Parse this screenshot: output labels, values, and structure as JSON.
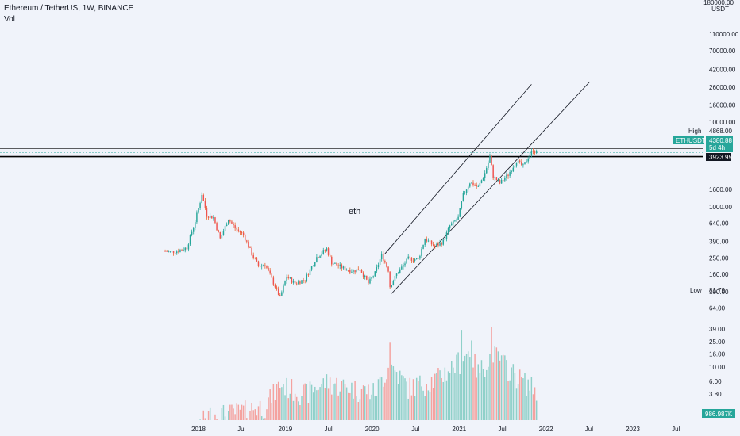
{
  "legend": {
    "symbol_line": "Ethereum / TetherUS, 1W, BINANCE",
    "volume_label": "Vol"
  },
  "colors": {
    "up": "#26a69a",
    "down": "#ef5350",
    "wick_up": "#26a69a",
    "wick_down": "#e8662c",
    "volume_up": "#8fd0c9",
    "volume_down": "#f4a29f",
    "resistance": "#000000",
    "price_tag": "#26a69a",
    "level_tag": "#131722"
  },
  "chart_data": [
    {
      "type": "candlestick",
      "title": "Ethereum / TetherUS, 1W, BINANCE",
      "price_axis_labels": [
        "110000.00",
        "70000.00",
        "42000.00",
        "26000.00",
        "16000.00",
        "10000.00",
        "6400.00",
        "1600.00",
        "1000.00",
        "640.00",
        "390.00",
        "250.00",
        "160.00",
        "100.00",
        "64.00"
      ],
      "price_scale": "log",
      "ylim": [
        50,
        180000
      ],
      "x_axis_labels": [
        "2018",
        "Jul",
        "2019",
        "Jul",
        "2020",
        "Jul",
        "2021",
        "Jul",
        "2022",
        "Jul",
        "2023",
        "Jul"
      ],
      "series_name": "ETHUSDT",
      "last_price": "4380.88",
      "countdown": "5d 4h",
      "horizontal_level": "3923.95",
      "high_label": "High",
      "high_value": "4868.00",
      "low_label": "Low",
      "low_value": "81.79",
      "currency": "USDT",
      "axis_top_label": "180000.00",
      "annotation": "eth",
      "waypoints": [
        [
          "2017-08-14",
          300
        ],
        [
          "2017-09-04",
          295
        ],
        [
          "2017-10-02",
          300
        ],
        [
          "2017-11-13",
          330
        ],
        [
          "2017-12-18",
          680
        ],
        [
          "2018-01-08",
          1150
        ],
        [
          "2018-01-15",
          1420
        ],
        [
          "2018-02-05",
          800
        ],
        [
          "2018-03-05",
          750
        ],
        [
          "2018-04-02",
          420
        ],
        [
          "2018-05-07",
          720
        ],
        [
          "2018-06-04",
          560
        ],
        [
          "2018-07-09",
          470
        ],
        [
          "2018-08-13",
          280
        ],
        [
          "2018-09-10",
          200
        ],
        [
          "2018-10-08",
          210
        ],
        [
          "2018-11-19",
          115
        ],
        [
          "2018-12-10",
          85
        ],
        [
          "2019-01-07",
          150
        ],
        [
          "2019-02-11",
          125
        ],
        [
          "2019-03-25",
          140
        ],
        [
          "2019-05-13",
          255
        ],
        [
          "2019-06-24",
          320
        ],
        [
          "2019-07-15",
          220
        ],
        [
          "2019-09-09",
          185
        ],
        [
          "2019-10-14",
          175
        ],
        [
          "2019-11-11",
          185
        ],
        [
          "2019-12-16",
          125
        ],
        [
          "2020-01-13",
          165
        ],
        [
          "2020-02-10",
          270
        ],
        [
          "2020-03-09",
          180
        ],
        [
          "2020-03-16",
          115
        ],
        [
          "2020-04-13",
          160
        ],
        [
          "2020-06-01",
          245
        ],
        [
          "2020-07-13",
          240
        ],
        [
          "2020-08-10",
          420
        ],
        [
          "2020-09-21",
          340
        ],
        [
          "2020-10-26",
          390
        ],
        [
          "2020-11-23",
          600
        ],
        [
          "2020-12-28",
          740
        ],
        [
          "2021-01-18",
          1380
        ],
        [
          "2021-02-15",
          1950
        ],
        [
          "2021-03-22",
          1700
        ],
        [
          "2021-04-19",
          2500
        ],
        [
          "2021-05-10",
          3900
        ],
        [
          "2021-05-24",
          2300
        ],
        [
          "2021-06-21",
          1900
        ],
        [
          "2021-07-26",
          2400
        ],
        [
          "2021-08-30",
          3500
        ],
        [
          "2021-09-27",
          3000
        ],
        [
          "2021-10-25",
          4200
        ],
        [
          "2021-11-08",
          4700
        ],
        [
          "2021-11-22",
          4380
        ]
      ],
      "channel_lines": [
        {
          "name": "channel-upper",
          "from": [
            "2020-02-24",
            280
          ],
          "to": [
            "2021-11-01",
            28000
          ]
        },
        {
          "name": "channel-lower",
          "from": [
            "2020-03-23",
            95
          ],
          "to": [
            "2022-07-04",
            30000
          ]
        }
      ]
    },
    {
      "type": "bar",
      "title": "",
      "series_name": "Vol",
      "axis_labels": [
        "39.00",
        "25.00",
        "16.00",
        "10.00",
        "6.00",
        "3.80"
      ],
      "volume_scale": "log",
      "ylim": [
        1.5,
        60
      ],
      "last_volume": "986.987K",
      "volume_waypoints": [
        [
          "2017-08-14",
          0.3
        ],
        [
          "2017-12-18",
          1.0
        ],
        [
          "2018-02-05",
          1.8
        ],
        [
          "2018-06-04",
          2.0
        ],
        [
          "2018-10-08",
          2.6
        ],
        [
          "2018-12-10",
          5.5
        ],
        [
          "2019-03-25",
          4.0
        ],
        [
          "2019-06-24",
          6.0
        ],
        [
          "2019-10-14",
          4.8
        ],
        [
          "2020-01-13",
          4.2
        ],
        [
          "2020-03-16",
          11.0
        ],
        [
          "2020-06-01",
          5.0
        ],
        [
          "2020-09-21",
          6.5
        ],
        [
          "2020-12-28",
          12.0
        ],
        [
          "2021-02-15",
          18.0
        ],
        [
          "2021-03-22",
          8.5
        ],
        [
          "2021-05-24",
          17.0
        ],
        [
          "2021-08-30",
          7.5
        ],
        [
          "2021-11-22",
          4.5
        ]
      ],
      "volume_spikes": [
        [
          "2020-03-16",
          24.0
        ],
        [
          "2021-01-11",
          38.0
        ],
        [
          "2021-05-17",
          42.0
        ],
        [
          "2021-02-22",
          26.0
        ],
        [
          "2020-12-28",
          17.0
        ]
      ]
    }
  ]
}
